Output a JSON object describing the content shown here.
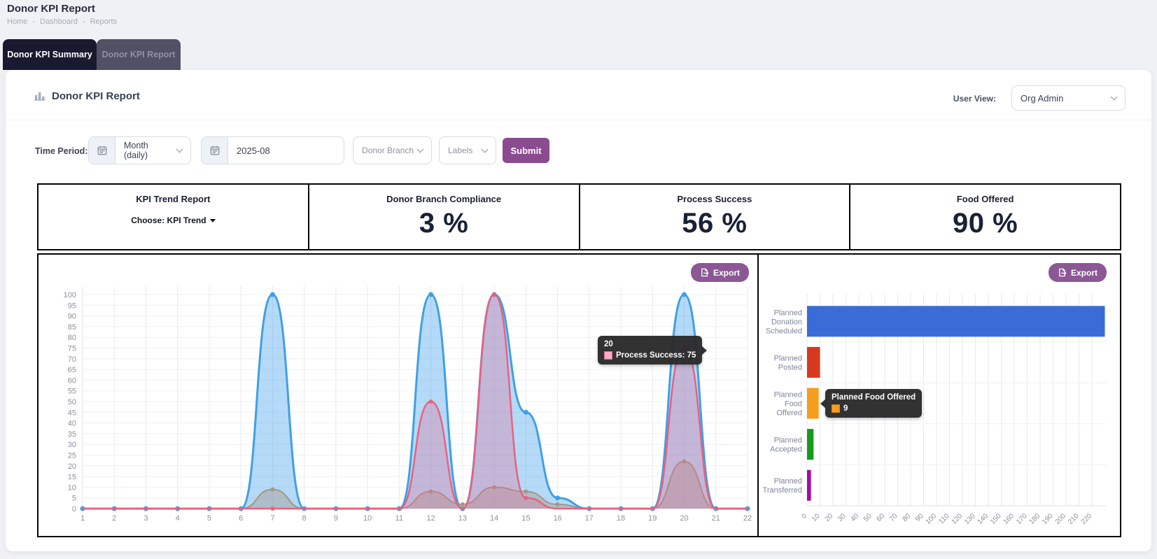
{
  "page": {
    "title": "Donor KPI Report"
  },
  "breadcrumb": [
    "Home",
    "Dashboard",
    "Reports"
  ],
  "tabs": [
    {
      "label": "Donor KPI Summary",
      "active": true
    },
    {
      "label": "Donor KPI Report",
      "active": false
    }
  ],
  "card": {
    "title": "Donor KPI Report",
    "user_view_label": "User View:",
    "user_view_value": "Org Admin"
  },
  "filters": {
    "label": "Time Period:",
    "granularity": "Month (daily)",
    "month": "2025-08",
    "donor_branch": "Donor Branch",
    "labels": "Labels",
    "submit": "Submit"
  },
  "kpis": {
    "trend": {
      "title": "KPI Trend Report",
      "chooser": "Choose: KPI Trend"
    },
    "cards": [
      {
        "title": "Donor Branch Compliance",
        "value": "3 %"
      },
      {
        "title": "Process Success",
        "value": "56 %"
      },
      {
        "title": "Food Offered",
        "value": "90 %"
      }
    ]
  },
  "export_label": "Export",
  "colors": {
    "accent_purple": "#8a4b8f",
    "tab_active_bg": "#191a30",
    "kpi_border": "#050505",
    "line_blue": "#3f9fe8",
    "line_tan": "#a59786",
    "line_pink": "#e8627f",
    "bar_blue": "#3a6bd7",
    "bar_red": "#d6391e",
    "bar_orange": "#f59d1f",
    "bar_green": "#169a1c",
    "bar_purple": "#a30ba3"
  },
  "chart_data": [
    {
      "type": "line",
      "title": "",
      "x": [
        1,
        2,
        3,
        4,
        5,
        6,
        7,
        8,
        9,
        10,
        11,
        12,
        13,
        14,
        15,
        16,
        17,
        18,
        19,
        20,
        21,
        22
      ],
      "ylim": [
        0,
        100
      ],
      "ytick_step": 5,
      "grid": true,
      "legend": "none",
      "series": [
        {
          "name": "unlabeled-blue",
          "color": "#3f9fe8",
          "fill": "rgba(79,166,235,0.42)",
          "width": 3,
          "dot_r": 3.5,
          "dots": "all",
          "values": [
            0,
            0,
            0,
            0,
            0,
            0,
            100,
            0,
            0,
            0,
            0,
            100,
            0,
            100,
            45,
            5,
            0,
            0,
            0,
            100,
            0,
            0
          ]
        },
        {
          "name": "unlabeled-tan",
          "color": "#a59786",
          "fill": "rgba(165,151,134,0.42)",
          "width": 2,
          "dot_r": 3,
          "dots": "nonzero",
          "values": [
            0,
            0,
            0,
            0,
            0,
            0,
            9,
            0,
            0,
            0,
            0,
            8,
            2,
            10,
            8,
            2,
            0,
            0,
            0,
            22,
            0,
            0
          ]
        },
        {
          "name": "Process Success",
          "color": "#e8627f",
          "fill": "rgba(233,99,142,0.30)",
          "width": 2.5,
          "dot_r": 3,
          "dots": [
            6,
            11,
            13,
            14,
            19
          ],
          "values": [
            0,
            0,
            0,
            0,
            0,
            0,
            0,
            0,
            0,
            0,
            0,
            50,
            0,
            100,
            5,
            0,
            0,
            0,
            0,
            75,
            0,
            0
          ]
        }
      ],
      "tooltip": {
        "title": "20",
        "text": "Process Success: 75"
      }
    },
    {
      "type": "bar",
      "orientation": "horizontal",
      "title": "",
      "categories": [
        "Planned Donation Scheduled",
        "Planned Posted",
        "Planned Food Offered",
        "Planned Accepted",
        "Planned Transferred"
      ],
      "values": [
        230,
        10,
        9,
        5,
        3
      ],
      "colors": [
        "#3a6bd7",
        "#d6391e",
        "#f59d1f",
        "#169a1c",
        "#a30ba3"
      ],
      "xlim": [
        0,
        230
      ],
      "xtick_max": 220,
      "xtick_step": 10,
      "grid": true,
      "legend": "none",
      "tooltip": {
        "title": "Planned Food Offered",
        "value": "9"
      }
    }
  ]
}
